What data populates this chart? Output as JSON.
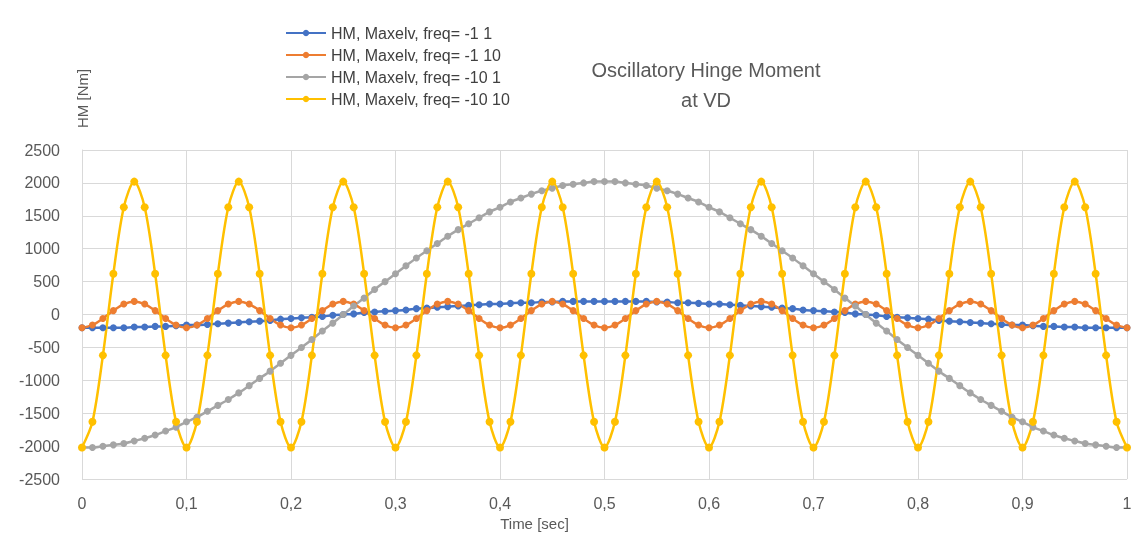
{
  "chart_data": {
    "type": "line",
    "title": "Oscillatory Hinge Moment\nat VD",
    "xlabel": "Time [sec]",
    "ylabel": "HM [Nm]",
    "x": [
      0,
      0.01,
      0.02,
      0.03,
      0.04,
      0.05,
      0.06,
      0.07,
      0.08,
      0.09,
      0.1,
      0.11,
      0.12,
      0.13,
      0.14,
      0.15,
      0.16,
      0.17,
      0.18,
      0.19,
      0.2,
      0.21,
      0.22,
      0.23,
      0.24,
      0.25,
      0.26,
      0.27,
      0.28,
      0.29,
      0.3,
      0.31,
      0.32,
      0.33,
      0.34,
      0.35,
      0.36,
      0.37,
      0.38,
      0.39,
      0.4,
      0.41,
      0.42,
      0.43,
      0.44,
      0.45,
      0.46,
      0.47,
      0.48,
      0.49,
      0.5,
      0.51,
      0.52,
      0.53,
      0.54,
      0.55,
      0.56,
      0.57,
      0.58,
      0.59,
      0.6,
      0.61,
      0.62,
      0.63,
      0.64,
      0.65,
      0.66,
      0.67,
      0.68,
      0.69,
      0.7,
      0.71,
      0.72,
      0.73,
      0.74,
      0.75,
      0.76,
      0.77,
      0.78,
      0.79,
      0.8,
      0.81,
      0.82,
      0.83,
      0.84,
      0.85,
      0.86,
      0.87,
      0.88,
      0.89,
      0.9,
      0.91,
      0.92,
      0.93,
      0.94,
      0.95,
      0.96,
      0.97,
      0.98,
      0.99,
      1
    ],
    "series": [
      {
        "name": "HM, Maxelv, freq= -1 1",
        "color": "#4472c4",
        "values": [
          -200,
          -200,
          -200,
          -200,
          -200,
          -190,
          -190,
          -180,
          -180,
          -170,
          -160,
          -160,
          -150,
          -140,
          -130,
          -120,
          -110,
          -100,
          -90,
          -70,
          -60,
          -50,
          -40,
          -30,
          -10,
          0,
          10,
          30,
          40,
          50,
          60,
          70,
          90,
          100,
          110,
          120,
          130,
          140,
          150,
          160,
          160,
          170,
          180,
          180,
          190,
          190,
          200,
          200,
          200,
          200,
          200,
          200,
          200,
          200,
          200,
          190,
          190,
          180,
          180,
          170,
          160,
          160,
          150,
          140,
          130,
          120,
          110,
          100,
          90,
          70,
          60,
          50,
          40,
          30,
          10,
          0,
          -10,
          -30,
          -40,
          -50,
          -60,
          -70,
          -90,
          -100,
          -110,
          -120,
          -130,
          -140,
          -150,
          -160,
          -160,
          -170,
          -180,
          -180,
          -190,
          -190,
          -200,
          -200,
          -200,
          -200,
          -200
        ]
      },
      {
        "name": "HM, Maxelv, freq= -1 10",
        "color": "#ed7d31",
        "values": [
          -200,
          -160,
          -60,
          60,
          160,
          200,
          160,
          60,
          -60,
          -160,
          -200,
          -160,
          -60,
          60,
          160,
          200,
          160,
          60,
          -60,
          -160,
          -200,
          -160,
          -60,
          60,
          160,
          200,
          160,
          60,
          -60,
          -160,
          -200,
          -160,
          -60,
          60,
          160,
          200,
          160,
          60,
          -60,
          -160,
          -200,
          -160,
          -60,
          60,
          160,
          200,
          160,
          60,
          -60,
          -160,
          -200,
          -160,
          -60,
          60,
          160,
          200,
          160,
          60,
          -60,
          -160,
          -200,
          -160,
          -60,
          60,
          160,
          200,
          160,
          60,
          -60,
          -160,
          -200,
          -160,
          -60,
          60,
          160,
          200,
          160,
          60,
          -60,
          -160,
          -200,
          -160,
          -60,
          60,
          160,
          200,
          160,
          60,
          -60,
          -160,
          -200,
          -160,
          -60,
          60,
          160,
          200,
          160,
          60,
          -60,
          -160,
          -200
        ]
      },
      {
        "name": "HM, Maxelv, freq= -10 1",
        "color": "#a5a5a5",
        "values": [
          -2020,
          -2020,
          -2000,
          -1980,
          -1960,
          -1920,
          -1880,
          -1830,
          -1770,
          -1710,
          -1630,
          -1560,
          -1470,
          -1380,
          -1290,
          -1190,
          -1080,
          -970,
          -860,
          -740,
          -620,
          -500,
          -380,
          -250,
          -130,
          0,
          130,
          250,
          380,
          500,
          620,
          740,
          860,
          970,
          1080,
          1190,
          1290,
          1380,
          1470,
          1560,
          1630,
          1710,
          1770,
          1830,
          1880,
          1920,
          1960,
          1980,
          2000,
          2020,
          2020,
          2020,
          2000,
          1980,
          1960,
          1920,
          1880,
          1830,
          1770,
          1710,
          1630,
          1560,
          1470,
          1380,
          1290,
          1190,
          1080,
          970,
          860,
          740,
          620,
          500,
          380,
          250,
          130,
          0,
          -130,
          -250,
          -380,
          -500,
          -620,
          -740,
          -860,
          -970,
          -1080,
          -1190,
          -1290,
          -1380,
          -1470,
          -1560,
          -1630,
          -1710,
          -1770,
          -1830,
          -1880,
          -1920,
          -1960,
          -1980,
          -2000,
          -2020,
          -2020
        ]
      },
      {
        "name": "HM, Maxelv, freq= -10 10",
        "color": "#ffc000",
        "values": [
          -2020,
          -1630,
          -620,
          620,
          1630,
          2020,
          1630,
          620,
          -620,
          -1630,
          -2020,
          -1630,
          -620,
          620,
          1630,
          2020,
          1630,
          620,
          -620,
          -1630,
          -2020,
          -1630,
          -620,
          620,
          1630,
          2020,
          1630,
          620,
          -620,
          -1630,
          -2020,
          -1630,
          -620,
          620,
          1630,
          2020,
          1630,
          620,
          -620,
          -1630,
          -2020,
          -1630,
          -620,
          620,
          1630,
          2020,
          1630,
          620,
          -620,
          -1630,
          -2020,
          -1630,
          -620,
          620,
          1630,
          2020,
          1630,
          620,
          -620,
          -1630,
          -2020,
          -1630,
          -620,
          620,
          1630,
          2020,
          1630,
          620,
          -620,
          -1630,
          -2020,
          -1630,
          -620,
          620,
          1630,
          2020,
          1630,
          620,
          -620,
          -1630,
          -2020,
          -1630,
          -620,
          620,
          1630,
          2020,
          1630,
          620,
          -620,
          -1630,
          -2020,
          -1630,
          -620,
          620,
          1630,
          2020,
          1630,
          620,
          -620,
          -1630,
          -2020
        ]
      }
    ],
    "xlim": [
      0,
      1
    ],
    "xticks": [
      0,
      {
        "value": 0.1,
        "label": "0,1"
      },
      {
        "value": 0.2,
        "label": "0,2"
      },
      {
        "value": 0.3,
        "label": "0,3"
      },
      {
        "value": 0.4,
        "label": "0,4"
      },
      {
        "value": 0.5,
        "label": "0,5"
      },
      {
        "value": 0.6,
        "label": "0,6"
      },
      {
        "value": 0.7,
        "label": "0,7"
      },
      {
        "value": 0.8,
        "label": "0,8"
      },
      {
        "value": 0.9,
        "label": "0,9"
      },
      1
    ],
    "ylim": [
      -2500,
      2500
    ],
    "yticks": [
      -2500,
      -2000,
      -1500,
      -1000,
      -500,
      0,
      500,
      1000,
      1500,
      2000,
      2500
    ],
    "grid": true,
    "legend": "top",
    "marker": "circle",
    "line_style": "solid"
  }
}
